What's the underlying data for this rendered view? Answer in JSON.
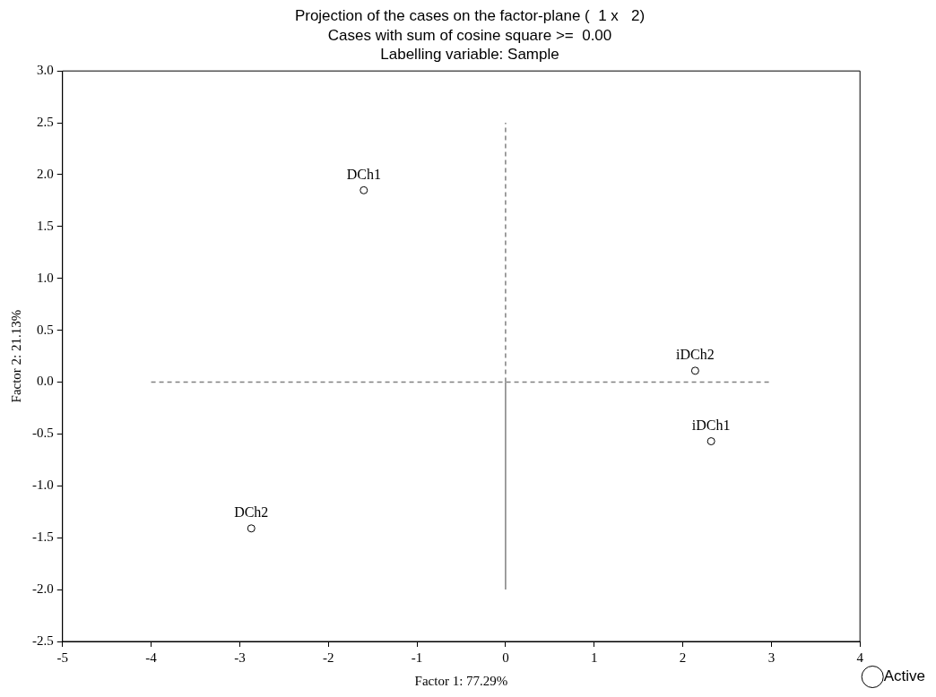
{
  "chart_data": {
    "type": "scatter",
    "title": "Projection of the cases on the factor-plane (  1 x   2)",
    "subtitle": "Cases with sum of cosine square >=  0.00\nLabelling variable: Sample",
    "xlabel": "Factor 1: 77.29%",
    "ylabel": "Factor 2: 21.13%",
    "xlim": [
      -5,
      4
    ],
    "xticks": [
      -5,
      -4,
      -3,
      -2,
      -1,
      0,
      1,
      2,
      3,
      4
    ],
    "ylim": [
      -2.5,
      3
    ],
    "yticks": [
      {
        "value": -2.5,
        "label": "-2.5"
      },
      {
        "value": -2,
        "label": "-2.0"
      },
      {
        "value": -1.5,
        "label": "-1.5"
      },
      {
        "value": -1,
        "label": "-1.0"
      },
      {
        "value": -0.5,
        "label": "-0.5"
      },
      {
        "value": 0,
        "label": "0.0"
      },
      {
        "value": 0.5,
        "label": "0.5"
      },
      {
        "value": 1,
        "label": "1.0"
      },
      {
        "value": 1.5,
        "label": "1.5"
      },
      {
        "value": 2,
        "label": "2.0"
      },
      {
        "value": 2.5,
        "label": "2.5"
      },
      {
        "value": 3,
        "label": "3.0"
      }
    ],
    "grid": false,
    "legend": "bottom right",
    "marker": "circle",
    "series": [
      {
        "name": "Active",
        "color": "#000000",
        "x": [
          -1.6,
          -2.87,
          2.14,
          2.32
        ],
        "values": [
          1.85,
          -1.41,
          0.11,
          -0.57
        ]
      },
      {
        "type": "line",
        "color": "#808080",
        "line_style": "dashed",
        "marker": "none",
        "x": [
          -4,
          3
        ],
        "values": [
          0,
          0
        ]
      },
      {
        "type": "line",
        "color": "#808080",
        "line_style": "dashed",
        "marker": "none",
        "x": [
          0,
          0
        ],
        "values": [
          0,
          2.5
        ]
      },
      {
        "type": "line",
        "color": "#808080",
        "line_style": "solid",
        "marker": "none",
        "x": [
          0,
          0
        ],
        "values": [
          -2,
          0
        ]
      }
    ],
    "annotations": [
      {
        "text": "DCh1",
        "x": -1.6,
        "y": 1.85
      },
      {
        "text": "DCh2",
        "x": -2.87,
        "y": -1.41
      },
      {
        "text": "iDCh2",
        "x": 2.14,
        "y": 0.11
      },
      {
        "text": "iDCh1",
        "x": 2.32,
        "y": -0.57
      }
    ]
  }
}
